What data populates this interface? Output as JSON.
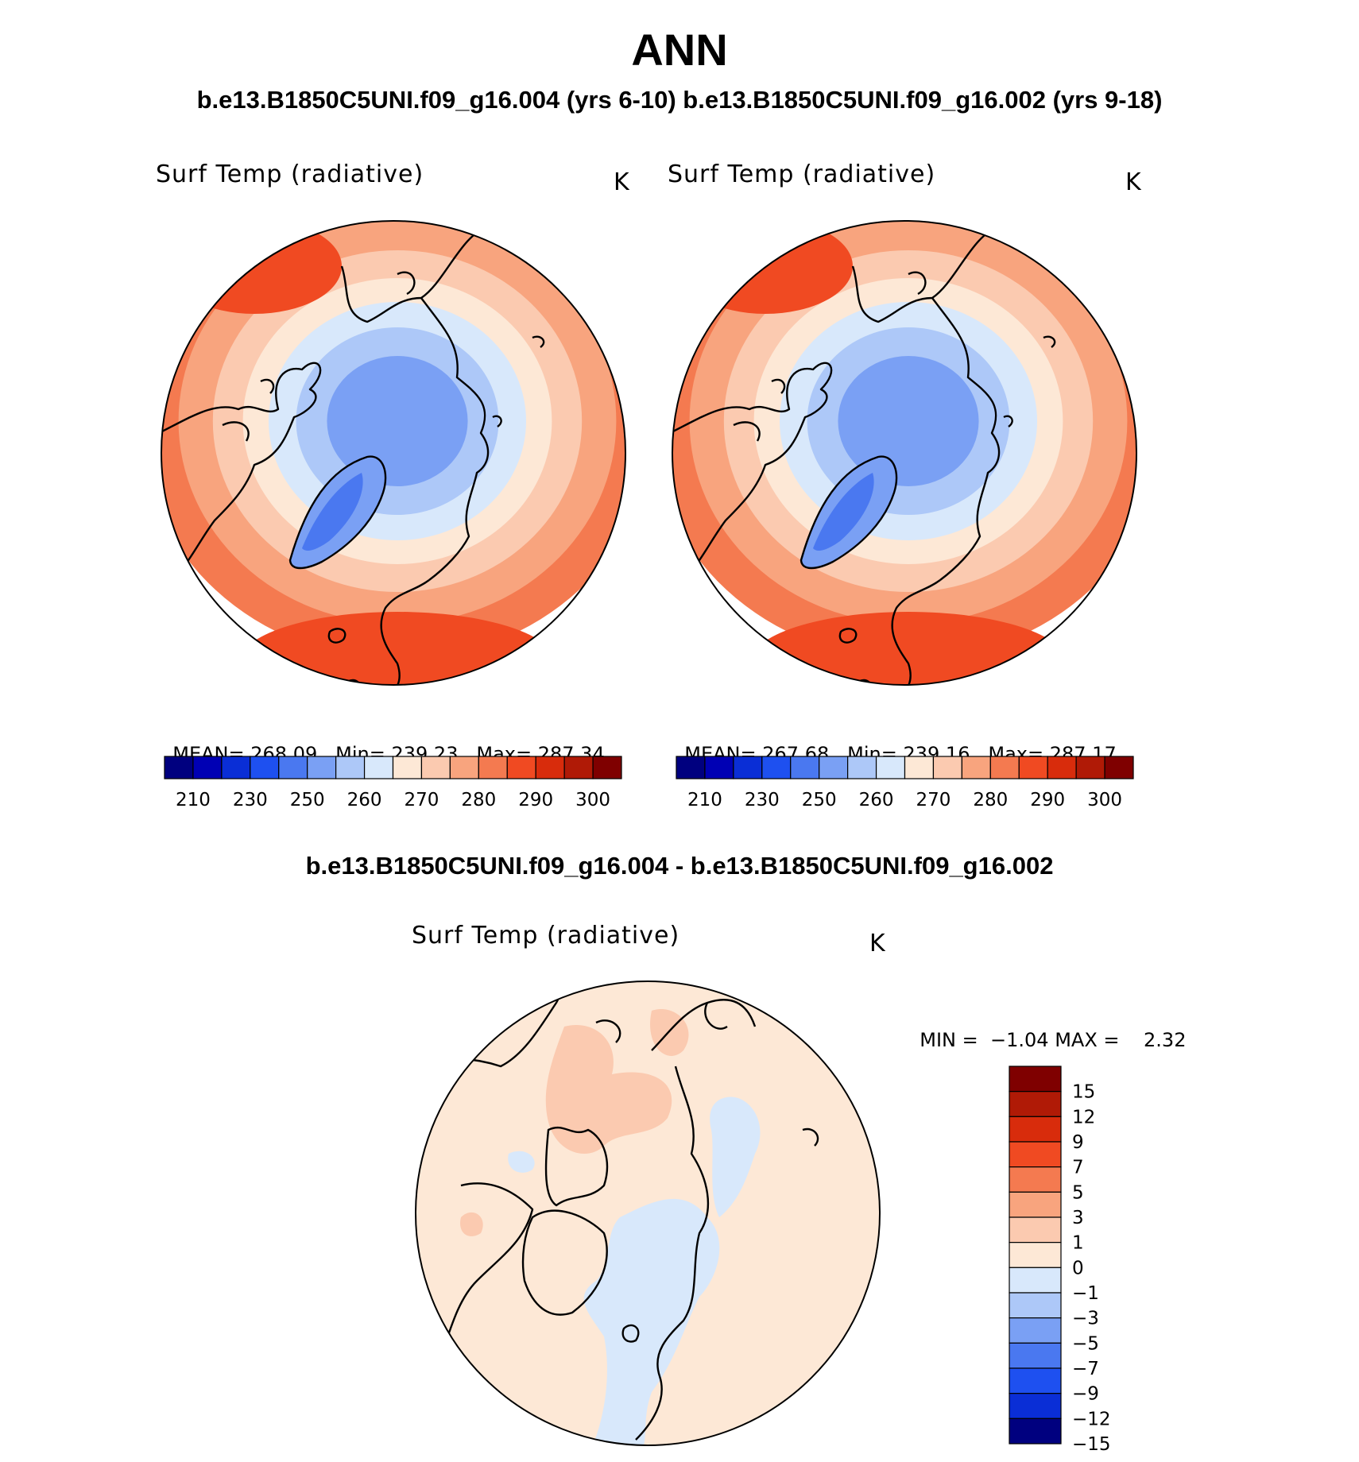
{
  "title": "ANN",
  "subtitle_top": "b.e13.B1850C5UNI.f09_g16.004 (yrs 6-10) b.e13.B1850C5UNI.f09_g16.002 (yrs 9-18)",
  "subtitle_diff": "b.e13.B1850C5UNI.f09_g16.004 - b.e13.B1850C5UNI.f09_g16.002",
  "colors": {
    "abs_scale": [
      "#00007f",
      "#0000b4",
      "#0a2ed6",
      "#1e50f0",
      "#4a78f0",
      "#7aa0f4",
      "#adc8f8",
      "#d8e8fb",
      "#fde8d6",
      "#fbcab0",
      "#f8a47e",
      "#f47a50",
      "#f04a22",
      "#d82c0c",
      "#b01a06",
      "#7f0000"
    ],
    "diff_scale": [
      "#00007f",
      "#0a2ed6",
      "#1e50f0",
      "#4a78f0",
      "#7aa0f4",
      "#adc8f8",
      "#d8e8fb",
      "#fde8d6",
      "#fbcab0",
      "#f8a47e",
      "#f47a50",
      "#f04a22",
      "#d82c0c",
      "#b01a06",
      "#7f0000"
    ]
  },
  "chart_data": [
    {
      "type": "heatmap",
      "projection": "north polar stereographic",
      "variable": "Surf Temp (radiative)",
      "units": "K",
      "stats": {
        "mean_label": "MEAN=",
        "mean": "268.09",
        "min_label": "Min=",
        "min": "239.23",
        "max_label": "Max=",
        "max": "287.34"
      },
      "colorbar_ticks": [
        "210",
        "230",
        "250",
        "260",
        "270",
        "280",
        "290",
        "300"
      ]
    },
    {
      "type": "heatmap",
      "projection": "north polar stereographic",
      "variable": "Surf Temp (radiative)",
      "units": "K",
      "stats": {
        "mean_label": "MEAN=",
        "mean": "267.68",
        "min_label": "Min=",
        "min": "239.16",
        "max_label": "Max=",
        "max": "287.17"
      },
      "colorbar_ticks": [
        "210",
        "230",
        "250",
        "260",
        "270",
        "280",
        "290",
        "300"
      ]
    },
    {
      "type": "heatmap",
      "projection": "north polar stereographic",
      "variable": "Surf Temp (radiative)",
      "units": "K",
      "stats": {
        "min_label": "MIN =",
        "min": "−1.04",
        "max_label": "MAX =",
        "max": "2.32"
      },
      "colorbar_ticks": [
        "15",
        "12",
        "9",
        "7",
        "5",
        "3",
        "1",
        "0",
        "−1",
        "−3",
        "−5",
        "−7",
        "−9",
        "−12",
        "−15"
      ]
    }
  ]
}
